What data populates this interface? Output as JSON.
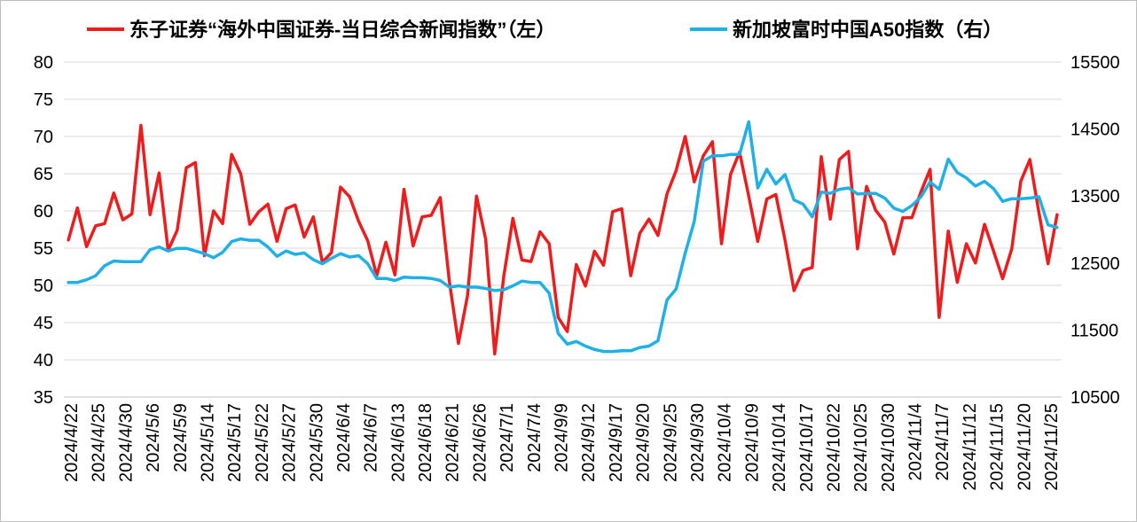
{
  "chart_data": {
    "type": "line",
    "title": "",
    "legend_position": "top",
    "grid": true,
    "y_left": {
      "range": [
        35,
        80
      ],
      "ticks": [
        35,
        40,
        45,
        50,
        55,
        60,
        65,
        70,
        75,
        80
      ]
    },
    "y_right": {
      "range": [
        10500,
        15500
      ],
      "ticks": [
        10500,
        11500,
        12500,
        13500,
        14500,
        15500
      ]
    },
    "x_tick_labels": [
      "2024/4/22",
      "2024/4/25",
      "2024/4/30",
      "2024/5/6",
      "2024/5/9",
      "2024/5/14",
      "2024/5/17",
      "2024/5/22",
      "2024/5/27",
      "2024/5/30",
      "2024/6/4",
      "2024/6/7",
      "2024/6/13",
      "2024/6/18",
      "2024/6/21",
      "2024/6/26",
      "2024/7/1",
      "2024/7/4",
      "2024/9/9",
      "2024/9/12",
      "2024/9/17",
      "2024/9/20",
      "2024/9/25",
      "2024/9/30",
      "2024/10/4",
      "2024/10/9",
      "2024/10/14",
      "2024/10/17",
      "2024/10/22",
      "2024/10/25",
      "2024/10/30",
      "2024/11/4",
      "2024/11/7",
      "2024/11/12",
      "2024/11/15",
      "2024/11/20",
      "2024/11/25"
    ],
    "series": [
      {
        "name": "东子证券“海外中国证券-当日综合新闻指数”（左）",
        "axis": "left",
        "color": "#ee1c1c",
        "values": [
          56.1,
          60.4,
          55.2,
          58.0,
          58.3,
          62.4,
          58.8,
          59.6,
          71.5,
          59.5,
          65.1,
          54.7,
          57.4,
          65.8,
          66.5,
          54.0,
          60.0,
          58.3,
          67.6,
          65.0,
          58.2,
          59.9,
          60.9,
          55.9,
          60.3,
          60.8,
          56.5,
          59.2,
          53.1,
          54.4,
          63.2,
          61.9,
          58.6,
          56.0,
          51.3,
          55.8,
          51.4,
          62.9,
          55.3,
          59.2,
          59.4,
          61.8,
          50.5,
          42.2,
          48.6,
          62.0,
          56.2,
          40.8,
          51.2,
          59.0,
          53.4,
          53.2,
          57.2,
          55.6,
          45.7,
          43.8,
          52.8,
          49.9,
          54.6,
          52.7,
          59.9,
          60.3,
          51.3,
          57.0,
          58.9,
          56.7,
          62.3,
          65.4,
          70.0,
          63.9,
          67.4,
          69.3,
          55.6,
          64.9,
          67.9,
          62.0,
          55.9,
          61.6,
          62.2,
          56.1,
          49.3,
          52.0,
          52.4,
          67.3,
          58.9,
          66.9,
          68.0,
          54.9,
          63.3,
          60.1,
          58.5,
          54.2,
          59.1,
          59.1,
          62.6,
          65.6,
          45.7,
          57.3,
          50.4,
          55.6,
          53.0,
          58.2,
          54.6,
          50.9,
          54.9,
          64.0,
          66.9,
          59.8,
          52.9,
          59.5
        ]
      },
      {
        "name": "新加坡富时中国A50指数（右）",
        "axis": "right",
        "color": "#1fb0e8",
        "values": [
          12210,
          12210,
          12250,
          12310,
          12460,
          12530,
          12520,
          12520,
          12520,
          12700,
          12740,
          12680,
          12720,
          12720,
          12680,
          12640,
          12580,
          12660,
          12820,
          12860,
          12840,
          12840,
          12740,
          12600,
          12680,
          12630,
          12650,
          12550,
          12490,
          12570,
          12640,
          12590,
          12610,
          12490,
          12270,
          12270,
          12240,
          12290,
          12280,
          12280,
          12270,
          12240,
          12140,
          12160,
          12140,
          12140,
          12120,
          12090,
          12100,
          12160,
          12230,
          12210,
          12210,
          12050,
          11450,
          11290,
          11330,
          11260,
          11210,
          11180,
          11180,
          11190,
          11190,
          11240,
          11260,
          11340,
          11950,
          12110,
          12650,
          13120,
          14020,
          14100,
          14100,
          14120,
          14120,
          14610,
          13620,
          13900,
          13680,
          13820,
          13440,
          13380,
          13190,
          13560,
          13540,
          13600,
          13620,
          13530,
          13540,
          13540,
          13470,
          13320,
          13270,
          13360,
          13490,
          13710,
          13600,
          14050,
          13850,
          13770,
          13650,
          13720,
          13610,
          13420,
          13460,
          13460,
          13470,
          13490,
          13070,
          13030
        ]
      }
    ]
  }
}
